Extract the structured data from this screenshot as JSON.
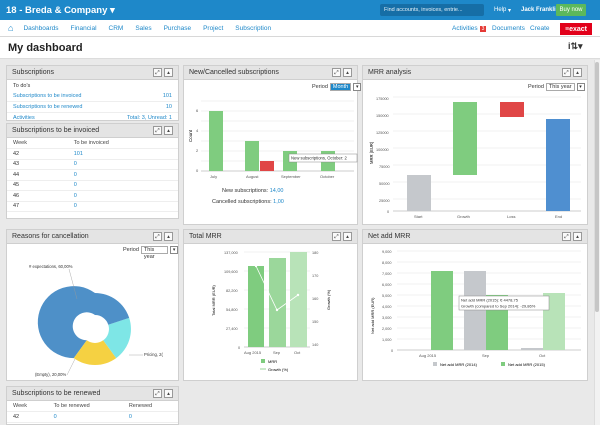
{
  "topbar": {
    "company": "18 - Breda & Company",
    "search_placeholder": "Find accounts, invoices, entrie...",
    "help": "Help",
    "user": "Jack Franklin",
    "buy_now": "Buy now"
  },
  "nav": {
    "items": [
      "Dashboards",
      "Financial",
      "CRM",
      "Sales",
      "Purchase",
      "Project",
      "Subscription"
    ],
    "activities": "Activities",
    "activities_count": "3",
    "documents": "Documents",
    "create": "Create",
    "logo": "exact"
  },
  "page": {
    "title": "My dashboard"
  },
  "subscriptions": {
    "title": "Subscriptions",
    "todo": "To do's",
    "items": [
      {
        "label": "Subscriptions to be invoiced",
        "value": "101"
      },
      {
        "label": "Subscriptions to be renewed",
        "value": "10"
      },
      {
        "label": "Activities",
        "value": "Total: 3, Unread: 1"
      }
    ]
  },
  "to_invoice": {
    "title": "Subscriptions to be invoiced",
    "col_week": "Week",
    "col_inv": "To be invoiced",
    "rows": [
      {
        "week": "42",
        "v": "101"
      },
      {
        "week": "43",
        "v": "0"
      },
      {
        "week": "44",
        "v": "0"
      },
      {
        "week": "45",
        "v": "0"
      },
      {
        "week": "46",
        "v": "0"
      },
      {
        "week": "47",
        "v": "0"
      }
    ]
  },
  "new_cancel": {
    "title": "New/Cancelled subscriptions",
    "period_label": "Period",
    "period_value": "Month",
    "ylabel": "Count",
    "tooltip": "New subscriptions, October: 2",
    "new_label": "New subscriptions:",
    "new_value": "14,00",
    "cancel_label": "Cancelled subscriptions:",
    "cancel_value": "1,00"
  },
  "mrr": {
    "title": "MRR analysis",
    "period_label": "Period",
    "period_value": "This year",
    "ylabel": "MRR (EUR)"
  },
  "reasons": {
    "title": "Reasons for cancellation",
    "period_label": "Period",
    "period_value": "This year",
    "labels": [
      "# expectations, 60,00%",
      "(Empty), 20,00%",
      "Pricing, 2("
    ]
  },
  "total_mrr": {
    "title": "Total MRR",
    "ylabel_left": "Total MRR (EUR)",
    "ylabel_right": "Growth (%)",
    "legend1": "MRR",
    "legend2": "Growth (%)"
  },
  "net_mrr": {
    "title": "Net add MRR",
    "ylabel": "Net add MRR (EUR)",
    "tooltip1": "Net add MRR (2015): € 4478,75",
    "tooltip2": "Growth (compared to Sep 2014): -29,86%",
    "legend1": "Net add MRR (2014)",
    "legend2": "Net add MRR (2015)"
  },
  "to_renew": {
    "title": "Subscriptions to be renewed",
    "col_week": "Week",
    "col_renew": "To be renewed",
    "col_renewed": "Renewed",
    "rows": [
      {
        "week": "42",
        "a": "0",
        "b": "0"
      }
    ]
  },
  "chart_data": [
    {
      "type": "bar",
      "title": "New/Cancelled subscriptions",
      "categories": [
        "July",
        "August",
        "September",
        "October"
      ],
      "series": [
        {
          "values": [
            7,
            3,
            2,
            2
          ]
        },
        {
          "values": [
            0,
            1,
            0,
            0
          ]
        }
      ],
      "ylabel": "Count",
      "ylim": [
        0,
        9
      ]
    },
    {
      "type": "bar",
      "title": "MRR analysis",
      "categories": [
        "Start",
        "Growth",
        "Loss",
        "End"
      ],
      "ylabel": "MRR (EUR)",
      "ylim": [
        0,
        175000
      ],
      "yticks": [
        "0",
        "25000",
        "50000",
        "75000",
        "100000",
        "125000",
        "150000",
        "175000"
      ]
    },
    {
      "type": "bar",
      "title": "Total MRR",
      "categories": [
        "Aug 2015",
        "Sep",
        "Oct"
      ],
      "series": [
        {
          "name": "MRR",
          "values": [
            120000,
            131000,
            137000
          ]
        },
        {
          "name": "Growth (%)",
          "values": [
            173,
            155,
            160
          ]
        }
      ],
      "yticks_left": [
        "0",
        "27,400",
        "54,800",
        "82,200",
        "109,600",
        "137,000"
      ],
      "yticks_right": [
        "140",
        "150",
        "160",
        "170",
        "180"
      ]
    },
    {
      "type": "bar",
      "title": "Net add MRR",
      "categories": [
        "Aug 2015",
        "Sep",
        "Oct"
      ],
      "series": [
        {
          "name": "Net add MRR (2014)",
          "values": [
            0,
            6400,
            0
          ]
        },
        {
          "name": "Net add MRR (2015)",
          "values": [
            6400,
            4479,
            4600
          ]
        }
      ],
      "ylabel": "Net add MRR (EUR)",
      "ylim": [
        0,
        9000
      ],
      "yticks": [
        "0",
        "1,000",
        "2,000",
        "3,000",
        "4,000",
        "5,000",
        "6,000",
        "7,000",
        "8,000",
        "9,000"
      ]
    },
    {
      "type": "pie",
      "title": "Reasons for cancellation",
      "labels": [
        "# expectations",
        "(Empty)",
        "Pricing"
      ],
      "values": [
        60,
        20,
        20
      ]
    }
  ]
}
